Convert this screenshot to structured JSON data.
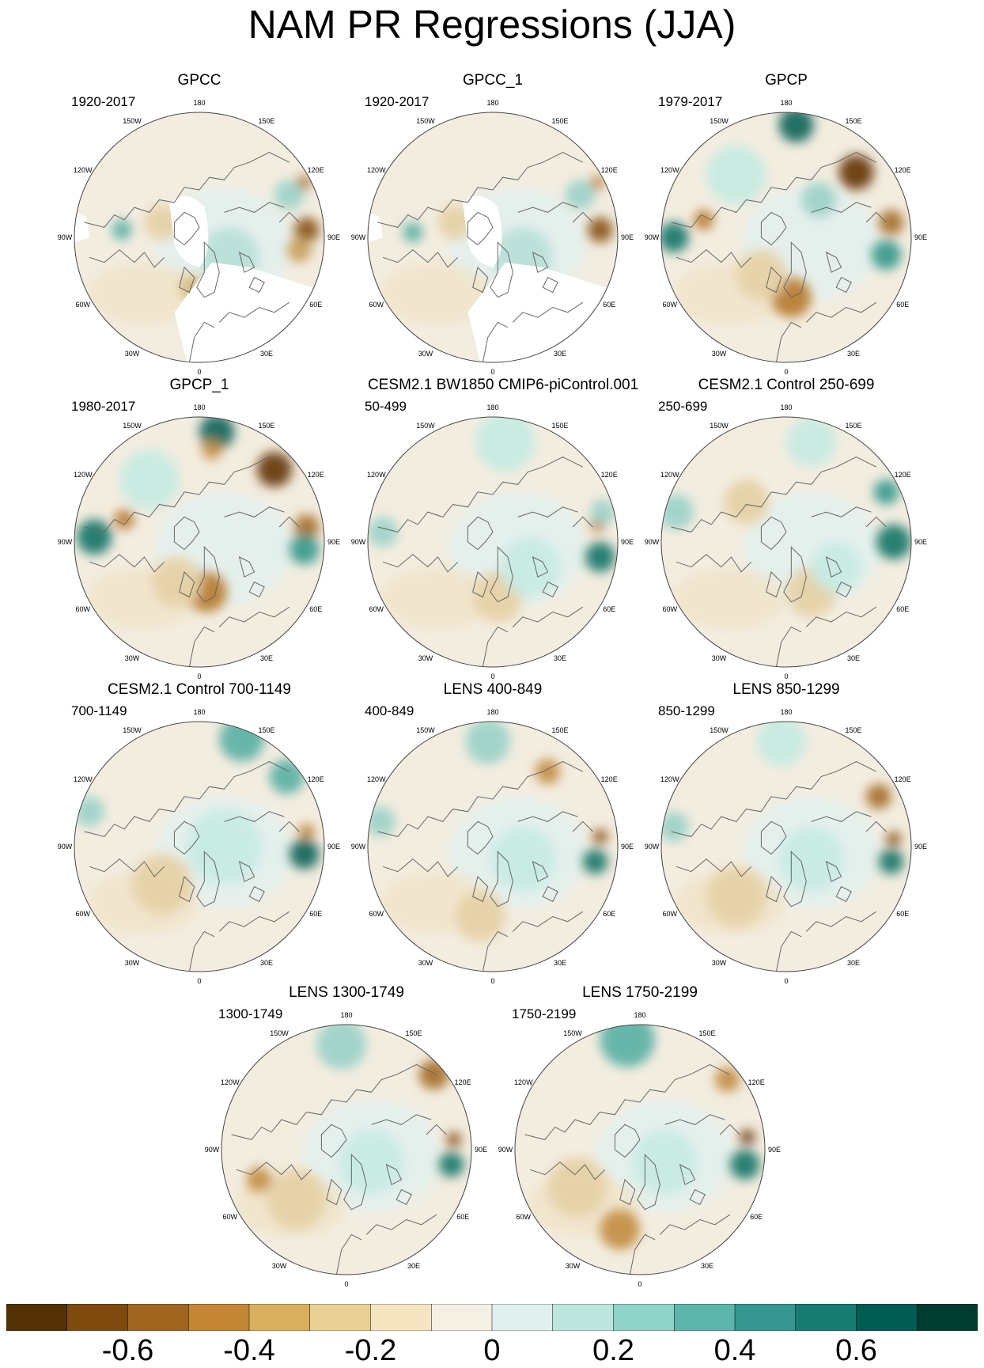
{
  "title": "NAM PR Regressions (JJA)",
  "lon_labels": [
    "180",
    "150E",
    "120E",
    "90E",
    "60E",
    "30E",
    "0",
    "30W",
    "60W",
    "90W",
    "120W",
    "150W"
  ],
  "panels": [
    {
      "title": "GPCC",
      "period": "1920-2017",
      "mask_arctic": true,
      "blobs": [
        [
          "#8b5a1a",
          0.93,
          0.47,
          0.05
        ],
        [
          "#c9a163",
          0.9,
          0.55,
          0.05
        ],
        [
          "#9ed3c9",
          0.86,
          0.33,
          0.06
        ],
        [
          "#b97d34",
          0.92,
          0.28,
          0.03
        ],
        [
          "#d8bc82",
          0.47,
          0.7,
          0.05
        ],
        [
          "#5fb3a6",
          0.19,
          0.47,
          0.04
        ],
        [
          "#b9e0d9",
          0.62,
          0.58,
          0.12
        ],
        [
          "#e6d2a6",
          0.35,
          0.44,
          0.07
        ]
      ]
    },
    {
      "title": "GPCC_1",
      "period": "1920-2017",
      "mask_arctic": true,
      "blobs": [
        [
          "#8b5a1a",
          0.93,
          0.47,
          0.05
        ],
        [
          "#c9a163",
          0.52,
          0.74,
          0.04
        ],
        [
          "#9ed3c9",
          0.85,
          0.33,
          0.06
        ],
        [
          "#c49048",
          0.92,
          0.28,
          0.03
        ],
        [
          "#5fb3a6",
          0.18,
          0.48,
          0.04
        ],
        [
          "#b9e0d9",
          0.62,
          0.58,
          0.12
        ],
        [
          "#e6d2a6",
          0.35,
          0.44,
          0.07
        ]
      ]
    },
    {
      "title": "GPCP",
      "period": "1979-2017",
      "mask_arctic": false,
      "blobs": [
        [
          "#15695e",
          0.54,
          0.05,
          0.07
        ],
        [
          "#6a3c10",
          0.78,
          0.24,
          0.07
        ],
        [
          "#a8732f",
          0.92,
          0.44,
          0.05
        ],
        [
          "#1a7a6d",
          0.05,
          0.5,
          0.06
        ],
        [
          "#b97d34",
          0.17,
          0.43,
          0.04
        ],
        [
          "#b97d34",
          0.52,
          0.74,
          0.08
        ],
        [
          "#3c9c8f",
          0.9,
          0.57,
          0.06
        ],
        [
          "#c7ebe3",
          0.3,
          0.25,
          0.12
        ],
        [
          "#e6d2a6",
          0.4,
          0.65,
          0.1
        ],
        [
          "#9ed3c9",
          0.63,
          0.35,
          0.07
        ]
      ]
    },
    {
      "title": "GPCP_1",
      "period": "1980-2017",
      "mask_arctic": false,
      "blobs": [
        [
          "#15695e",
          0.57,
          0.06,
          0.07
        ],
        [
          "#6a3c10",
          0.8,
          0.21,
          0.07
        ],
        [
          "#a8732f",
          0.93,
          0.44,
          0.05
        ],
        [
          "#1a7a6d",
          0.08,
          0.48,
          0.07
        ],
        [
          "#b97d34",
          0.2,
          0.41,
          0.04
        ],
        [
          "#b97d34",
          0.53,
          0.7,
          0.08
        ],
        [
          "#3c9c8f",
          0.92,
          0.53,
          0.06
        ],
        [
          "#c49048",
          0.55,
          0.13,
          0.04
        ],
        [
          "#c7ebe3",
          0.3,
          0.25,
          0.12
        ],
        [
          "#e6d2a6",
          0.41,
          0.66,
          0.1
        ]
      ]
    },
    {
      "title": "CESM2.1 BW1850 CMIP6-piControl.001",
      "period": "50-499",
      "mask_arctic": false,
      "blobs": [
        [
          "#c7ebe3",
          0.55,
          0.1,
          0.12
        ],
        [
          "#1a7a6d",
          0.93,
          0.56,
          0.06
        ],
        [
          "#b97d34",
          0.92,
          0.43,
          0.03
        ],
        [
          "#9ed3c9",
          0.94,
          0.38,
          0.05
        ],
        [
          "#9ed3c9",
          0.06,
          0.46,
          0.06
        ],
        [
          "#e6d2a6",
          0.52,
          0.72,
          0.1
        ],
        [
          "#c7ebe3",
          0.65,
          0.6,
          0.12
        ]
      ]
    },
    {
      "title": "CESM2.1 Control 250-699",
      "period": "250-699",
      "mask_arctic": false,
      "blobs": [
        [
          "#c7ebe3",
          0.6,
          0.1,
          0.1
        ],
        [
          "#1a7a6d",
          0.93,
          0.5,
          0.07
        ],
        [
          "#3c9c8f",
          0.9,
          0.3,
          0.05
        ],
        [
          "#9ed3c9",
          0.06,
          0.38,
          0.07
        ],
        [
          "#e6d2a6",
          0.34,
          0.34,
          0.09
        ],
        [
          "#e6d2a6",
          0.6,
          0.7,
          0.1
        ],
        [
          "#c7ebe3",
          0.7,
          0.6,
          0.1
        ]
      ]
    },
    {
      "title": "CESM2.1 Control 700-1149",
      "period": "700-1149",
      "mask_arctic": false,
      "blobs": [
        [
          "#5fb3a6",
          0.67,
          0.07,
          0.09
        ],
        [
          "#5fb3a6",
          0.85,
          0.22,
          0.07
        ],
        [
          "#15695e",
          0.92,
          0.53,
          0.06
        ],
        [
          "#b97d34",
          0.93,
          0.44,
          0.03
        ],
        [
          "#9ed3c9",
          0.06,
          0.36,
          0.06
        ],
        [
          "#e6d2a6",
          0.35,
          0.65,
          0.12
        ],
        [
          "#c7ebe3",
          0.6,
          0.5,
          0.15
        ]
      ]
    },
    {
      "title": "LENS 400-849",
      "period": "400-849",
      "mask_arctic": false,
      "blobs": [
        [
          "#9ed3c9",
          0.48,
          0.08,
          0.09
        ],
        [
          "#c49048",
          0.72,
          0.2,
          0.05
        ],
        [
          "#1a7a6d",
          0.91,
          0.56,
          0.05
        ],
        [
          "#8b5a1a",
          0.93,
          0.46,
          0.03
        ],
        [
          "#9ed3c9",
          0.05,
          0.4,
          0.06
        ],
        [
          "#e6d2a6",
          0.45,
          0.78,
          0.1
        ],
        [
          "#c7ebe3",
          0.62,
          0.55,
          0.13
        ]
      ]
    },
    {
      "title": "LENS 850-1299",
      "period": "850-1299",
      "mask_arctic": false,
      "blobs": [
        [
          "#c7ebe3",
          0.48,
          0.08,
          0.1
        ],
        [
          "#a8732f",
          0.87,
          0.3,
          0.05
        ],
        [
          "#1a7a6d",
          0.92,
          0.56,
          0.05
        ],
        [
          "#8b5a1a",
          0.93,
          0.47,
          0.03
        ],
        [
          "#9ed3c9",
          0.05,
          0.42,
          0.06
        ],
        [
          "#e6d2a6",
          0.3,
          0.7,
          0.12
        ],
        [
          "#c7ebe3",
          0.6,
          0.55,
          0.13
        ]
      ]
    },
    {
      "title": "LENS 1300-1749",
      "period": "1300-1749",
      "mask_arctic": false,
      "blobs": [
        [
          "#9ed3c9",
          0.48,
          0.08,
          0.1
        ],
        [
          "#a8732f",
          0.85,
          0.2,
          0.06
        ],
        [
          "#1a7a6d",
          0.92,
          0.56,
          0.05
        ],
        [
          "#8b5a1a",
          0.93,
          0.46,
          0.03
        ],
        [
          "#c49048",
          0.15,
          0.62,
          0.05
        ],
        [
          "#e6d2a6",
          0.3,
          0.7,
          0.12
        ],
        [
          "#c7ebe3",
          0.6,
          0.55,
          0.13
        ]
      ]
    },
    {
      "title": "LENS 1750-2199",
      "period": "1750-2199",
      "mask_arctic": false,
      "blobs": [
        [
          "#5fb3a6",
          0.45,
          0.06,
          0.11
        ],
        [
          "#c49048",
          0.85,
          0.22,
          0.05
        ],
        [
          "#1a7a6d",
          0.92,
          0.56,
          0.06
        ],
        [
          "#6a3c10",
          0.93,
          0.45,
          0.03
        ],
        [
          "#c49048",
          0.42,
          0.82,
          0.08
        ],
        [
          "#e6d2a6",
          0.25,
          0.65,
          0.12
        ],
        [
          "#c7ebe3",
          0.6,
          0.55,
          0.13
        ]
      ]
    }
  ],
  "colorbar": {
    "colors": [
      "#543005",
      "#7f4a0e",
      "#a0651f",
      "#c38634",
      "#d8af5e",
      "#e8cf95",
      "#f5e5c0",
      "#f5f0e4",
      "#e0f0ef",
      "#bde7de",
      "#90d3c8",
      "#5cb6aa",
      "#35978f",
      "#167b70",
      "#015c52",
      "#003c30"
    ],
    "ticks": [
      "-0.6",
      "-0.4",
      "-0.2",
      "0",
      "0.2",
      "0.4",
      "0.6"
    ],
    "tick_values": [
      -0.6,
      -0.4,
      -0.2,
      0,
      0.2,
      0.4,
      0.6
    ],
    "range": [
      -0.8,
      0.8
    ]
  }
}
